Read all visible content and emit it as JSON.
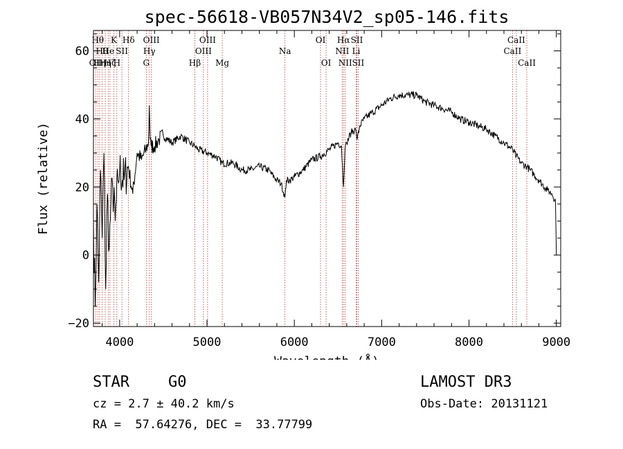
{
  "chart_data": {
    "type": "line",
    "title": "spec-56618-VB057N34V2_sp05-146.fits",
    "xlabel": "Wavelength (Å)",
    "ylabel": "Flux (relative)",
    "xlim": [
      3700,
      9050
    ],
    "ylim": [
      -21,
      66
    ],
    "xticks": [
      4000,
      5000,
      6000,
      7000,
      8000,
      9000
    ],
    "yticks": [
      -20,
      0,
      20,
      40,
      60
    ],
    "x_minor_step": 200,
    "y_minor_step": 5,
    "line_color": "#000000",
    "marker_color": "#b03030",
    "series": [
      {
        "name": "flux",
        "x": [
          3700,
          3720,
          3740,
          3760,
          3780,
          3800,
          3820,
          3840,
          3860,
          3880,
          3900,
          3920,
          3950,
          3980,
          4000,
          4050,
          4100,
          4150,
          4200,
          4250,
          4300,
          4330,
          4340,
          4350,
          4360,
          4400,
          4450,
          4500,
          4600,
          4700,
          4800,
          4861,
          4900,
          5000,
          5100,
          5175,
          5300,
          5400,
          5500,
          5600,
          5700,
          5800,
          5850,
          5893,
          5910,
          5950,
          6000,
          6100,
          6200,
          6300,
          6400,
          6500,
          6540,
          6563,
          6580,
          6600,
          6650,
          6700,
          6720,
          6750,
          6800,
          6900,
          7000,
          7100,
          7200,
          7300,
          7400,
          7500,
          7600,
          7700,
          7800,
          7900,
          8000,
          8100,
          8200,
          8300,
          8400,
          8498,
          8542,
          8600,
          8662,
          8700,
          8800,
          8900,
          8950,
          8990,
          9000
        ],
        "y": [
          10,
          -15,
          15,
          -8,
          25,
          5,
          30,
          -10,
          18,
          2,
          15,
          20,
          10,
          22,
          25,
          22,
          26,
          18,
          30,
          28,
          31,
          33,
          44,
          34,
          32,
          32,
          34,
          35,
          33,
          35,
          33,
          32,
          31,
          30,
          29,
          27,
          27,
          25,
          25,
          26,
          25,
          22,
          21,
          17,
          22,
          22,
          23,
          25,
          28,
          29,
          31,
          33,
          32,
          20,
          31,
          33,
          36,
          37,
          34,
          38,
          40,
          42,
          44,
          46,
          47,
          47,
          47,
          45,
          44,
          43,
          42,
          40,
          39,
          38,
          37,
          35,
          33,
          31,
          29,
          27,
          26,
          25,
          22,
          19,
          18,
          16,
          0
        ]
      }
    ],
    "lines": [
      {
        "wl": 3727,
        "label": "OII",
        "row": 3
      },
      {
        "wl": 3750,
        "label": "Hθ",
        "row": 1
      },
      {
        "wl": 3771,
        "label": "Hη",
        "row": 3
      },
      {
        "wl": 3798,
        "label": "Hθ",
        "row": 2
      },
      {
        "wl": 3835,
        "label": "Hη",
        "row": 3
      },
      {
        "wl": 3869,
        "label": "He",
        "row": 2
      },
      {
        "wl": 3889,
        "label": "Hζ",
        "row": 3
      },
      {
        "wl": 3934,
        "label": "K",
        "row": 1
      },
      {
        "wl": 3968,
        "label": "H",
        "row": 3
      },
      {
        "wl": 4026,
        "label": "SII",
        "row": 2
      },
      {
        "wl": 4102,
        "label": "Hδ",
        "row": 1
      },
      {
        "wl": 4305,
        "label": "G",
        "row": 3
      },
      {
        "wl": 4340,
        "label": "Hγ",
        "row": 2
      },
      {
        "wl": 4363,
        "label": "OIII",
        "row": 1
      },
      {
        "wl": 4861,
        "label": "Hβ",
        "row": 3
      },
      {
        "wl": 4959,
        "label": "OIII",
        "row": 2
      },
      {
        "wl": 5007,
        "label": "OIII",
        "row": 1
      },
      {
        "wl": 5175,
        "label": "Mg",
        "row": 3
      },
      {
        "wl": 5893,
        "label": "Na",
        "row": 2
      },
      {
        "wl": 6300,
        "label": "OI",
        "row": 1
      },
      {
        "wl": 6364,
        "label": "OI",
        "row": 3
      },
      {
        "wl": 6548,
        "label": "NII",
        "row": 2
      },
      {
        "wl": 6563,
        "label": "Hα",
        "row": 1
      },
      {
        "wl": 6583,
        "label": "NII",
        "row": 3
      },
      {
        "wl": 6708,
        "label": "Li",
        "row": 2
      },
      {
        "wl": 6716,
        "label": "SII",
        "row": 1
      },
      {
        "wl": 6731,
        "label": "SII",
        "row": 3
      },
      {
        "wl": 8498,
        "label": "CaII",
        "row": 2
      },
      {
        "wl": 8542,
        "label": "CaII",
        "row": 1
      },
      {
        "wl": 8662,
        "label": "CaII",
        "row": 3
      }
    ]
  },
  "info": {
    "object_class": "STAR",
    "subclass": "G0",
    "survey": "LAMOST DR3",
    "redshift": "cz = 2.7 ± 40.2 km/s",
    "obs_date": "Obs-Date: 20131121",
    "coords": "RA =  57.64276, DEC =  33.77799"
  }
}
